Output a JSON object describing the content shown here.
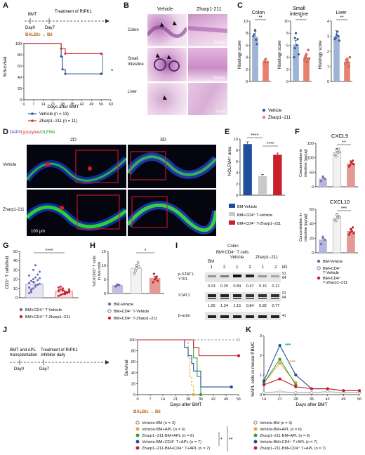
{
  "panel_labels": [
    "A",
    "B",
    "C",
    "D",
    "E",
    "F",
    "G",
    "H",
    "I",
    "J",
    "K"
  ],
  "colors": {
    "vehicle_blue": "#2f5d9a",
    "zharp_red": "#d03a3a",
    "zharp_salmon": "#e8826e",
    "gray": "#9aa0a6",
    "orange": "#e8a23a",
    "green": "#3a9a3a",
    "navy": "#1e4f9a",
    "crimson": "#c8202a",
    "teal_star": "#1a9a8a"
  },
  "A": {
    "timeline": {
      "bmt": "BMT",
      "treatment": "Treatment of RIPK1",
      "treatment2": "inhibitor daily",
      "day0": "Day0",
      "day7": "Day7"
    },
    "strain": "BALB/c → B6",
    "ylabel": "%Survival",
    "xlabel": "Days after BMT",
    "yticks": [
      "0",
      "20",
      "40",
      "60",
      "80",
      "100"
    ],
    "xticks": [
      "0",
      "7",
      "14",
      "21",
      "28",
      "35",
      "42",
      "49",
      "56",
      "63"
    ],
    "legend": [
      "Vehicle (n = 13)",
      "Zharp1−211 (n = 11)"
    ],
    "sig": "*"
  },
  "B": {
    "cols": [
      "Vehicle",
      "Zharp1-211"
    ],
    "rows": [
      "Colon",
      "Small\nIntestine",
      "Liver"
    ],
    "scale_labels": [
      "100 μm",
      "100 μm",
      "50 μm"
    ]
  },
  "C": {
    "titles": [
      "Colon",
      "Small\nintestine",
      "Liver"
    ],
    "ylabel": "Histology score",
    "yticks_a": [
      "0",
      "2",
      "4",
      "6",
      "8",
      "10"
    ],
    "yticks_b": [
      "0",
      "2",
      "4",
      "6",
      "8",
      "10"
    ],
    "yticks_c": [
      "0",
      "1",
      "2",
      "3",
      "4"
    ],
    "sig": [
      "**",
      "*",
      "**"
    ],
    "legend": [
      "Vehicle",
      "Zharp1−211"
    ]
  },
  "D": {
    "stain": {
      "dapi": "DAPI/",
      "lysozyme": "Lysozyme",
      "olfm4": "/OLFM4"
    },
    "cols": [
      "2D",
      "3D"
    ],
    "rows": [
      "Vehicle",
      "Zharp1-211"
    ],
    "scale": "100 μm"
  },
  "E": {
    "ylabel": "%OLFM4⁺ area",
    "yticks": [
      "0",
      "2",
      "4",
      "6",
      "8",
      "10"
    ],
    "sig": [
      "****",
      "****"
    ],
    "legend": [
      "BM-Vehicle",
      "BM+CD4⁺ T-Vehicle",
      "BM+CD4⁺ T-Zharp1−211"
    ]
  },
  "F": {
    "titles": [
      "CXCL9",
      "CXCL10"
    ],
    "ylabel": "Concentration in\nintestine (pg/μg)",
    "yticks_a": [
      "0",
      "50",
      "100",
      "150"
    ],
    "yticks_b": [
      "0",
      "20",
      "40",
      "60"
    ],
    "sig": [
      "**",
      "***"
    ],
    "legend": [
      "BM-Vehicle",
      "BM+CD4⁺\nT-Vehicle",
      "BM+CD4⁺\nT-Zharp1−211"
    ]
  },
  "G": {
    "ylabel": "CD3⁺ T cells/field",
    "yticks": [
      "0",
      "10",
      "20",
      "30",
      "40",
      "50"
    ],
    "sig": "****",
    "legend": [
      "BM+CD4⁺ T-Vehicle",
      "BM+CD4⁺ T-Zharp1−211"
    ]
  },
  "H": {
    "ylabel": "%CXCR3⁺ T cells\nin live cells",
    "yticks": [
      "0",
      "5",
      "10",
      "15"
    ],
    "sig": "*",
    "legend": [
      "BM-Vehicle",
      "BM+CD4⁺ T-Vehicle",
      "BM+CD4⁺ T-Zharp1−211"
    ]
  },
  "I": {
    "header_colon": "Colon",
    "header_group": "BM+CD4⁺ T cells",
    "groups": [
      "BM",
      "Vehicle",
      "Zharp1−211"
    ],
    "lanes": [
      "1",
      "2",
      "1",
      "2",
      "1",
      "2"
    ],
    "kd": "kD",
    "rows": [
      {
        "label": "p-STAT1-\nY701",
        "mw": [
          "91",
          "84"
        ],
        "values": [
          "0.13",
          "0.25",
          "0.84",
          "0.47",
          "0.15",
          "0.12"
        ]
      },
      {
        "label": "STAT1",
        "mw": [
          "91",
          "84"
        ],
        "values": [
          "1.26",
          "1.34",
          "1.15",
          "0.84",
          "0.82",
          "0.77"
        ]
      },
      {
        "label": "β-actin",
        "mw": [
          "41"
        ],
        "values": []
      }
    ]
  },
  "J": {
    "timeline": {
      "bmt": "BMT and APL",
      "bmt2": "transplantation",
      "treatment": "Treatment of RIPK1",
      "treatment2": "inhibitor daily",
      "day0": "Day0",
      "day7": "Day7"
    },
    "ylabel": "Survival",
    "xlabel": "Days after BMT",
    "strain": "BALB/c → B6",
    "yticks": [
      "0",
      "20",
      "40",
      "60",
      "80",
      "100"
    ],
    "xticks": [
      "0",
      "7",
      "14",
      "21",
      "28",
      "35",
      "42",
      "49",
      "56"
    ],
    "legend": [
      "Vehicle-BM (n = 3)",
      "Vehicle-BM+APL (n = 6)",
      "Zharp1−211-BM+APL (n = 6)",
      "Vehicle-BM+CD4⁺ T+APL (n = 7)",
      "Zharp1−211-BM+CD4⁺ T+APL (n = 7)"
    ],
    "sig": [
      "*",
      "**"
    ]
  },
  "K": {
    "ylabel": "%APL cells in mouse PBMC",
    "xlabel": "Days after BMT",
    "yticks": [
      "0",
      "1",
      "2",
      "3"
    ],
    "xticks": [
      "14",
      "21",
      "28",
      "35",
      "42",
      "49",
      "56"
    ],
    "sig": [
      "***",
      "****"
    ],
    "legend": [
      "Vehicle-BM (n = 3)",
      "Vehicle-BM+APL (n = 6)",
      "Zharp1−211-BM+APL (n = 6)",
      "Vehicle-BM+CD4⁺ T+APL (n = 7)",
      "Zharp1−211-BM+CD4⁺ T+APL (n = 7)"
    ]
  },
  "chart_data": [
    {
      "panel": "A",
      "type": "line",
      "xlabel": "Days after BMT",
      "ylabel": "%Survival",
      "ylim": [
        0,
        100
      ],
      "series": [
        {
          "name": "Vehicle (n = 13)",
          "x": [
            0,
            24,
            27,
            28,
            30,
            31,
            56
          ],
          "y": [
            100,
            100,
            77,
            54,
            46,
            46,
            46
          ]
        },
        {
          "name": "Zharp1−211 (n = 11)",
          "x": [
            0,
            27,
            30,
            31,
            56
          ],
          "y": [
            100,
            91,
            82,
            82,
            82
          ]
        }
      ]
    },
    {
      "panel": "C-Colon",
      "type": "bar",
      "categories": [
        "Vehicle",
        "Zharp1−211"
      ],
      "values": [
        7.4,
        3.3
      ],
      "ylim": [
        0,
        10
      ]
    },
    {
      "panel": "C-Small intestine",
      "type": "bar",
      "categories": [
        "Vehicle",
        "Zharp1−211"
      ],
      "values": [
        6.1,
        4.0
      ],
      "ylim": [
        0,
        10
      ]
    },
    {
      "panel": "C-Liver",
      "type": "bar",
      "categories": [
        "Vehicle",
        "Zharp1−211"
      ],
      "values": [
        3.0,
        1.3
      ],
      "ylim": [
        0,
        4
      ]
    },
    {
      "panel": "E",
      "type": "bar",
      "categories": [
        "BM-Vehicle",
        "BM+CD4⁺ T-Vehicle",
        "BM+CD4⁺ T-Zharp1−211"
      ],
      "values": [
        9.1,
        3.4,
        7.2
      ],
      "ylim": [
        0,
        10
      ]
    },
    {
      "panel": "F-CXCL9",
      "type": "bar",
      "categories": [
        "BM-Vehicle",
        "BM+CD4⁺ T-Vehicle",
        "BM+CD4⁺ T-Zharp1−211"
      ],
      "values": [
        28,
        118,
        80
      ],
      "ylim": [
        0,
        150
      ]
    },
    {
      "panel": "F-CXCL10",
      "type": "bar",
      "categories": [
        "BM-Vehicle",
        "BM+CD4⁺ T-Vehicle",
        "BM+CD4⁺ T-Zharp1−211"
      ],
      "values": [
        18,
        48,
        30
      ],
      "ylim": [
        0,
        60
      ]
    },
    {
      "panel": "G",
      "type": "bar",
      "categories": [
        "BM+CD4⁺ T-Vehicle",
        "BM+CD4⁺ T-Zharp1−211"
      ],
      "values": [
        15,
        7
      ],
      "ylim": [
        0,
        50
      ]
    },
    {
      "panel": "H",
      "type": "bar",
      "categories": [
        "BM-Vehicle",
        "BM+CD4⁺ T-Vehicle",
        "BM+CD4⁺ T-Zharp1−211"
      ],
      "values": [
        3,
        9,
        5.5
      ],
      "ylim": [
        0,
        15
      ]
    },
    {
      "panel": "J",
      "type": "line",
      "xlabel": "Days after BMT",
      "ylabel": "Survival",
      "ylim": [
        0,
        100
      ],
      "series": [
        {
          "name": "Vehicle-BM (n = 3)",
          "x": [
            0,
            56
          ],
          "y": [
            100,
            100
          ]
        },
        {
          "name": "Vehicle-BM+APL (n = 6)",
          "x": [
            0,
            26,
            28,
            29,
            30,
            31
          ],
          "y": [
            100,
            100,
            67,
            33,
            17,
            0
          ]
        },
        {
          "name": "Zharp1−211-BM+APL (n = 6)",
          "x": [
            0,
            29,
            31,
            33,
            35
          ],
          "y": [
            100,
            100,
            67,
            33,
            0
          ]
        },
        {
          "name": "Vehicle-BM+CD4⁺ T+APL (n = 7)",
          "x": [
            0,
            23,
            26,
            28,
            30,
            31,
            35,
            52
          ],
          "y": [
            100,
            100,
            86,
            71,
            57,
            43,
            14,
            14
          ]
        },
        {
          "name": "Zharp1−211-BM+CD4⁺ T+APL (n = 7)",
          "x": [
            0,
            28,
            31,
            34,
            49,
            56
          ],
          "y": [
            100,
            100,
            86,
            71,
            71,
            71
          ]
        }
      ]
    },
    {
      "panel": "K",
      "type": "line",
      "xlabel": "Days after BMT",
      "ylabel": "%APL cells in mouse PBMC",
      "ylim": [
        0,
        3
      ],
      "x": [
        14,
        21,
        28,
        35,
        42,
        49,
        56
      ],
      "series": [
        {
          "name": "Vehicle-BM (n = 3)",
          "values": [
            0.1,
            0.15,
            0.1,
            0.1,
            0.15,
            0.1,
            0.1
          ]
        },
        {
          "name": "Vehicle-BM+APL (n = 6)",
          "values": [
            0.6,
            1.6,
            0.6,
            null,
            null,
            null,
            null
          ]
        },
        {
          "name": "Zharp1−211-BM+APL (n = 6)",
          "values": [
            0.6,
            1.8,
            0.5,
            null,
            null,
            null,
            null
          ]
        },
        {
          "name": "Vehicle-BM+CD4⁺ T+APL (n = 7)",
          "values": [
            0.7,
            2.5,
            1.0,
            0.3,
            0.3,
            0.2,
            null
          ]
        },
        {
          "name": "Zharp1−211-BM+CD4⁺ T+APL (n = 7)",
          "values": [
            0.5,
            0.8,
            0.4,
            0.3,
            0.3,
            0.2,
            0.2
          ]
        }
      ]
    }
  ]
}
